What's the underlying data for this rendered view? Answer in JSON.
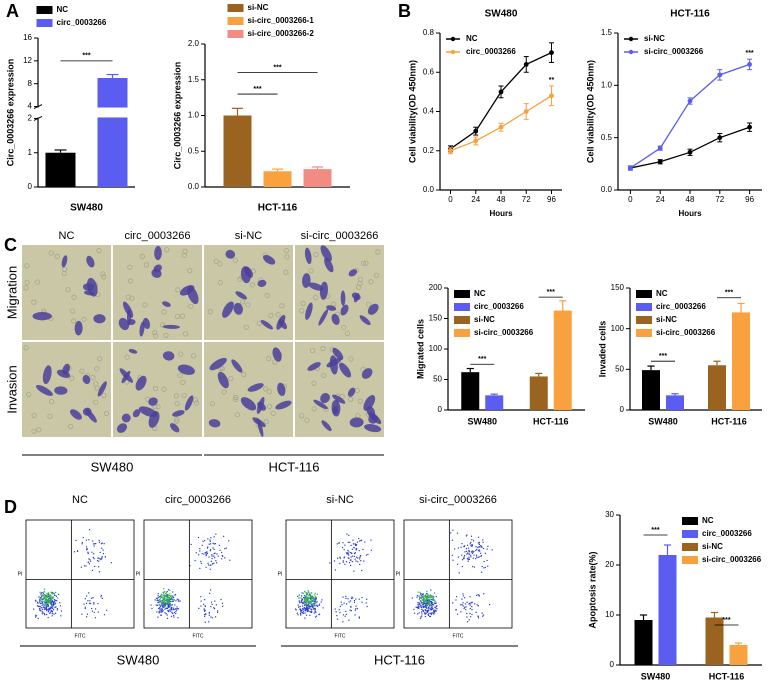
{
  "panels": [
    "A",
    "B",
    "C",
    "D"
  ],
  "micrographs": {
    "columns": [
      "NC",
      "circ_0003266",
      "si-NC",
      "si-circ_0003266"
    ],
    "rows": [
      "Migration",
      "Invasion"
    ],
    "groups": [
      "SW480",
      "HCT-116"
    ]
  },
  "flow_cytometry": {
    "columns": [
      "NC",
      "circ_0003266",
      "si-NC",
      "si-circ_0003266"
    ],
    "x_label": "FITC",
    "y_label": "PI",
    "groups": [
      "SW480",
      "HCT-116"
    ]
  },
  "chart_data": [
    {
      "type": "bar",
      "y_label": "Circ_0003266 expression",
      "categories": [
        "SW480"
      ],
      "legend": "top",
      "series": [
        {
          "name": "NC",
          "color": "#000000",
          "values": [
            1.0
          ],
          "errors": [
            0.08
          ]
        },
        {
          "name": "circ_0003266",
          "color": "#5b5cf0",
          "values": [
            9.0
          ],
          "errors": [
            0.6
          ]
        }
      ],
      "ylim": [
        0,
        16
      ],
      "yticks": [
        0,
        1,
        2,
        4,
        8,
        12,
        16
      ],
      "axis_break": [
        2,
        4
      ],
      "annotations": [
        "***"
      ]
    },
    {
      "type": "bar",
      "y_label": "Circ_0003266 expression",
      "categories": [
        "HCT-116"
      ],
      "legend": "top",
      "series": [
        {
          "name": "si-NC",
          "color": "#9b6320",
          "values": [
            1.0
          ],
          "errors": [
            0.1
          ]
        },
        {
          "name": "si-circ_0003266-1",
          "color": "#f9a03f",
          "values": [
            0.22
          ],
          "errors": [
            0.03
          ]
        },
        {
          "name": "si-circ_0003266-2",
          "color": "#f28b82",
          "values": [
            0.25
          ],
          "errors": [
            0.03
          ]
        }
      ],
      "ylim": [
        0,
        2
      ],
      "yticks": [
        {
          "value": 0,
          "label": "0.0"
        },
        {
          "value": 0.5,
          "label": "0.5"
        },
        {
          "value": 1,
          "label": "1.0"
        },
        {
          "value": 1.5,
          "label": "1.5"
        },
        {
          "value": 2,
          "label": "2.0"
        }
      ],
      "annotations": [
        "***",
        "***"
      ]
    },
    {
      "type": "line",
      "title": "SW480",
      "x_label": "Hours",
      "y_label": "Cell viability(OD 450nm)",
      "legend": "upper left",
      "x": [
        0,
        24,
        48,
        72,
        96
      ],
      "xlim": [
        -10,
        106
      ],
      "xticks": [
        0,
        24,
        48,
        72,
        96
      ],
      "series": [
        {
          "name": "NC",
          "color": "#000000",
          "values": [
            0.21,
            0.3,
            0.5,
            0.64,
            0.7
          ],
          "errors": [
            0.015,
            0.02,
            0.03,
            0.04,
            0.05
          ]
        },
        {
          "name": "circ_0003266",
          "color": "#f9a03f",
          "values": [
            0.2,
            0.25,
            0.32,
            0.4,
            0.48
          ],
          "errors": [
            0.015,
            0.02,
            0.02,
            0.04,
            0.05
          ]
        }
      ],
      "ylim": [
        0,
        0.8
      ],
      "yticks": [
        {
          "value": 0,
          "label": "0.0"
        },
        {
          "value": 0.2,
          "label": "0.2"
        },
        {
          "value": 0.4,
          "label": "0.4"
        },
        {
          "value": 0.6,
          "label": "0.6"
        },
        {
          "value": 0.8,
          "label": "0.8"
        }
      ],
      "annotations": [
        "**"
      ]
    },
    {
      "type": "line",
      "title": "HCT-116",
      "x_label": "Hours",
      "y_label": "Cell viability(OD 450nm)",
      "legend": "upper left",
      "x": [
        0,
        24,
        48,
        72,
        96
      ],
      "xlim": [
        -10,
        106
      ],
      "xticks": [
        0,
        24,
        48,
        72,
        96
      ],
      "series": [
        {
          "name": "si-NC",
          "color": "#000000",
          "values": [
            0.21,
            0.27,
            0.36,
            0.5,
            0.6
          ],
          "errors": [
            0.02,
            0.02,
            0.03,
            0.04,
            0.04
          ]
        },
        {
          "name": "si-circ_0003266",
          "color": "#5b5cf0",
          "values": [
            0.21,
            0.4,
            0.85,
            1.1,
            1.2
          ],
          "errors": [
            0.02,
            0.02,
            0.03,
            0.05,
            0.05
          ]
        }
      ],
      "ylim": [
        0,
        1.5
      ],
      "yticks": [
        {
          "value": 0,
          "label": "0.0"
        },
        {
          "value": 0.5,
          "label": "0.5"
        },
        {
          "value": 1,
          "label": "1.0"
        },
        {
          "value": 1.5,
          "label": "1.5"
        }
      ],
      "annotations": [
        "***"
      ]
    },
    {
      "type": "bar",
      "y_label": "Migrated cells",
      "categories": [
        "SW480",
        "HCT-116"
      ],
      "legend": "upper left",
      "series": [
        {
          "name": "NC",
          "color": "#000000",
          "values": [
            62,
            null
          ],
          "errors": [
            6,
            null
          ]
        },
        {
          "name": "circ_0003266",
          "color": "#5b5cf0",
          "values": [
            24,
            null
          ],
          "errors": [
            2,
            null
          ]
        },
        {
          "name": "si-NC",
          "color": "#9b6320",
          "values": [
            null,
            55
          ],
          "errors": [
            null,
            5
          ]
        },
        {
          "name": "si-circ_0003266",
          "color": "#f9a03f",
          "values": [
            null,
            163
          ],
          "errors": [
            null,
            16
          ]
        }
      ],
      "ylim": [
        0,
        200
      ],
      "yticks": [
        0,
        50,
        100,
        150,
        200
      ],
      "annotations": [
        "***",
        "***"
      ]
    },
    {
      "type": "bar",
      "y_label": "Invaded cells",
      "categories": [
        "SW480",
        "HCT-116"
      ],
      "legend": "upper left",
      "series": [
        {
          "name": "NC",
          "color": "#000000",
          "values": [
            49,
            null
          ],
          "errors": [
            5,
            null
          ]
        },
        {
          "name": "circ_0003266",
          "color": "#5b5cf0",
          "values": [
            18,
            null
          ],
          "errors": [
            2,
            null
          ]
        },
        {
          "name": "si-NC",
          "color": "#9b6320",
          "values": [
            null,
            55
          ],
          "errors": [
            null,
            5
          ]
        },
        {
          "name": "si-circ_0003266",
          "color": "#f9a03f",
          "values": [
            null,
            120
          ],
          "errors": [
            null,
            11
          ]
        }
      ],
      "ylim": [
        0,
        150
      ],
      "yticks": [
        0,
        50,
        100,
        150
      ],
      "annotations": [
        "***",
        "***"
      ]
    },
    {
      "type": "bar",
      "y_label": "Apoptosis rate(%)",
      "categories": [
        "SW480",
        "HCT-116"
      ],
      "legend": "upper right",
      "series": [
        {
          "name": "NC",
          "color": "#000000",
          "values": [
            9,
            null
          ],
          "errors": [
            1,
            null
          ]
        },
        {
          "name": "circ_0003266",
          "color": "#5b5cf0",
          "values": [
            22,
            null
          ],
          "errors": [
            2,
            null
          ]
        },
        {
          "name": "si-NC",
          "color": "#9b6320",
          "values": [
            null,
            9.5
          ],
          "errors": [
            null,
            1
          ]
        },
        {
          "name": "si-circ_0003266",
          "color": "#f9a03f",
          "values": [
            null,
            4
          ],
          "errors": [
            null,
            0.4
          ]
        }
      ],
      "ylim": [
        0,
        30
      ],
      "yticks": [
        0,
        10,
        20,
        30
      ],
      "annotations": [
        "***",
        "***"
      ]
    }
  ]
}
